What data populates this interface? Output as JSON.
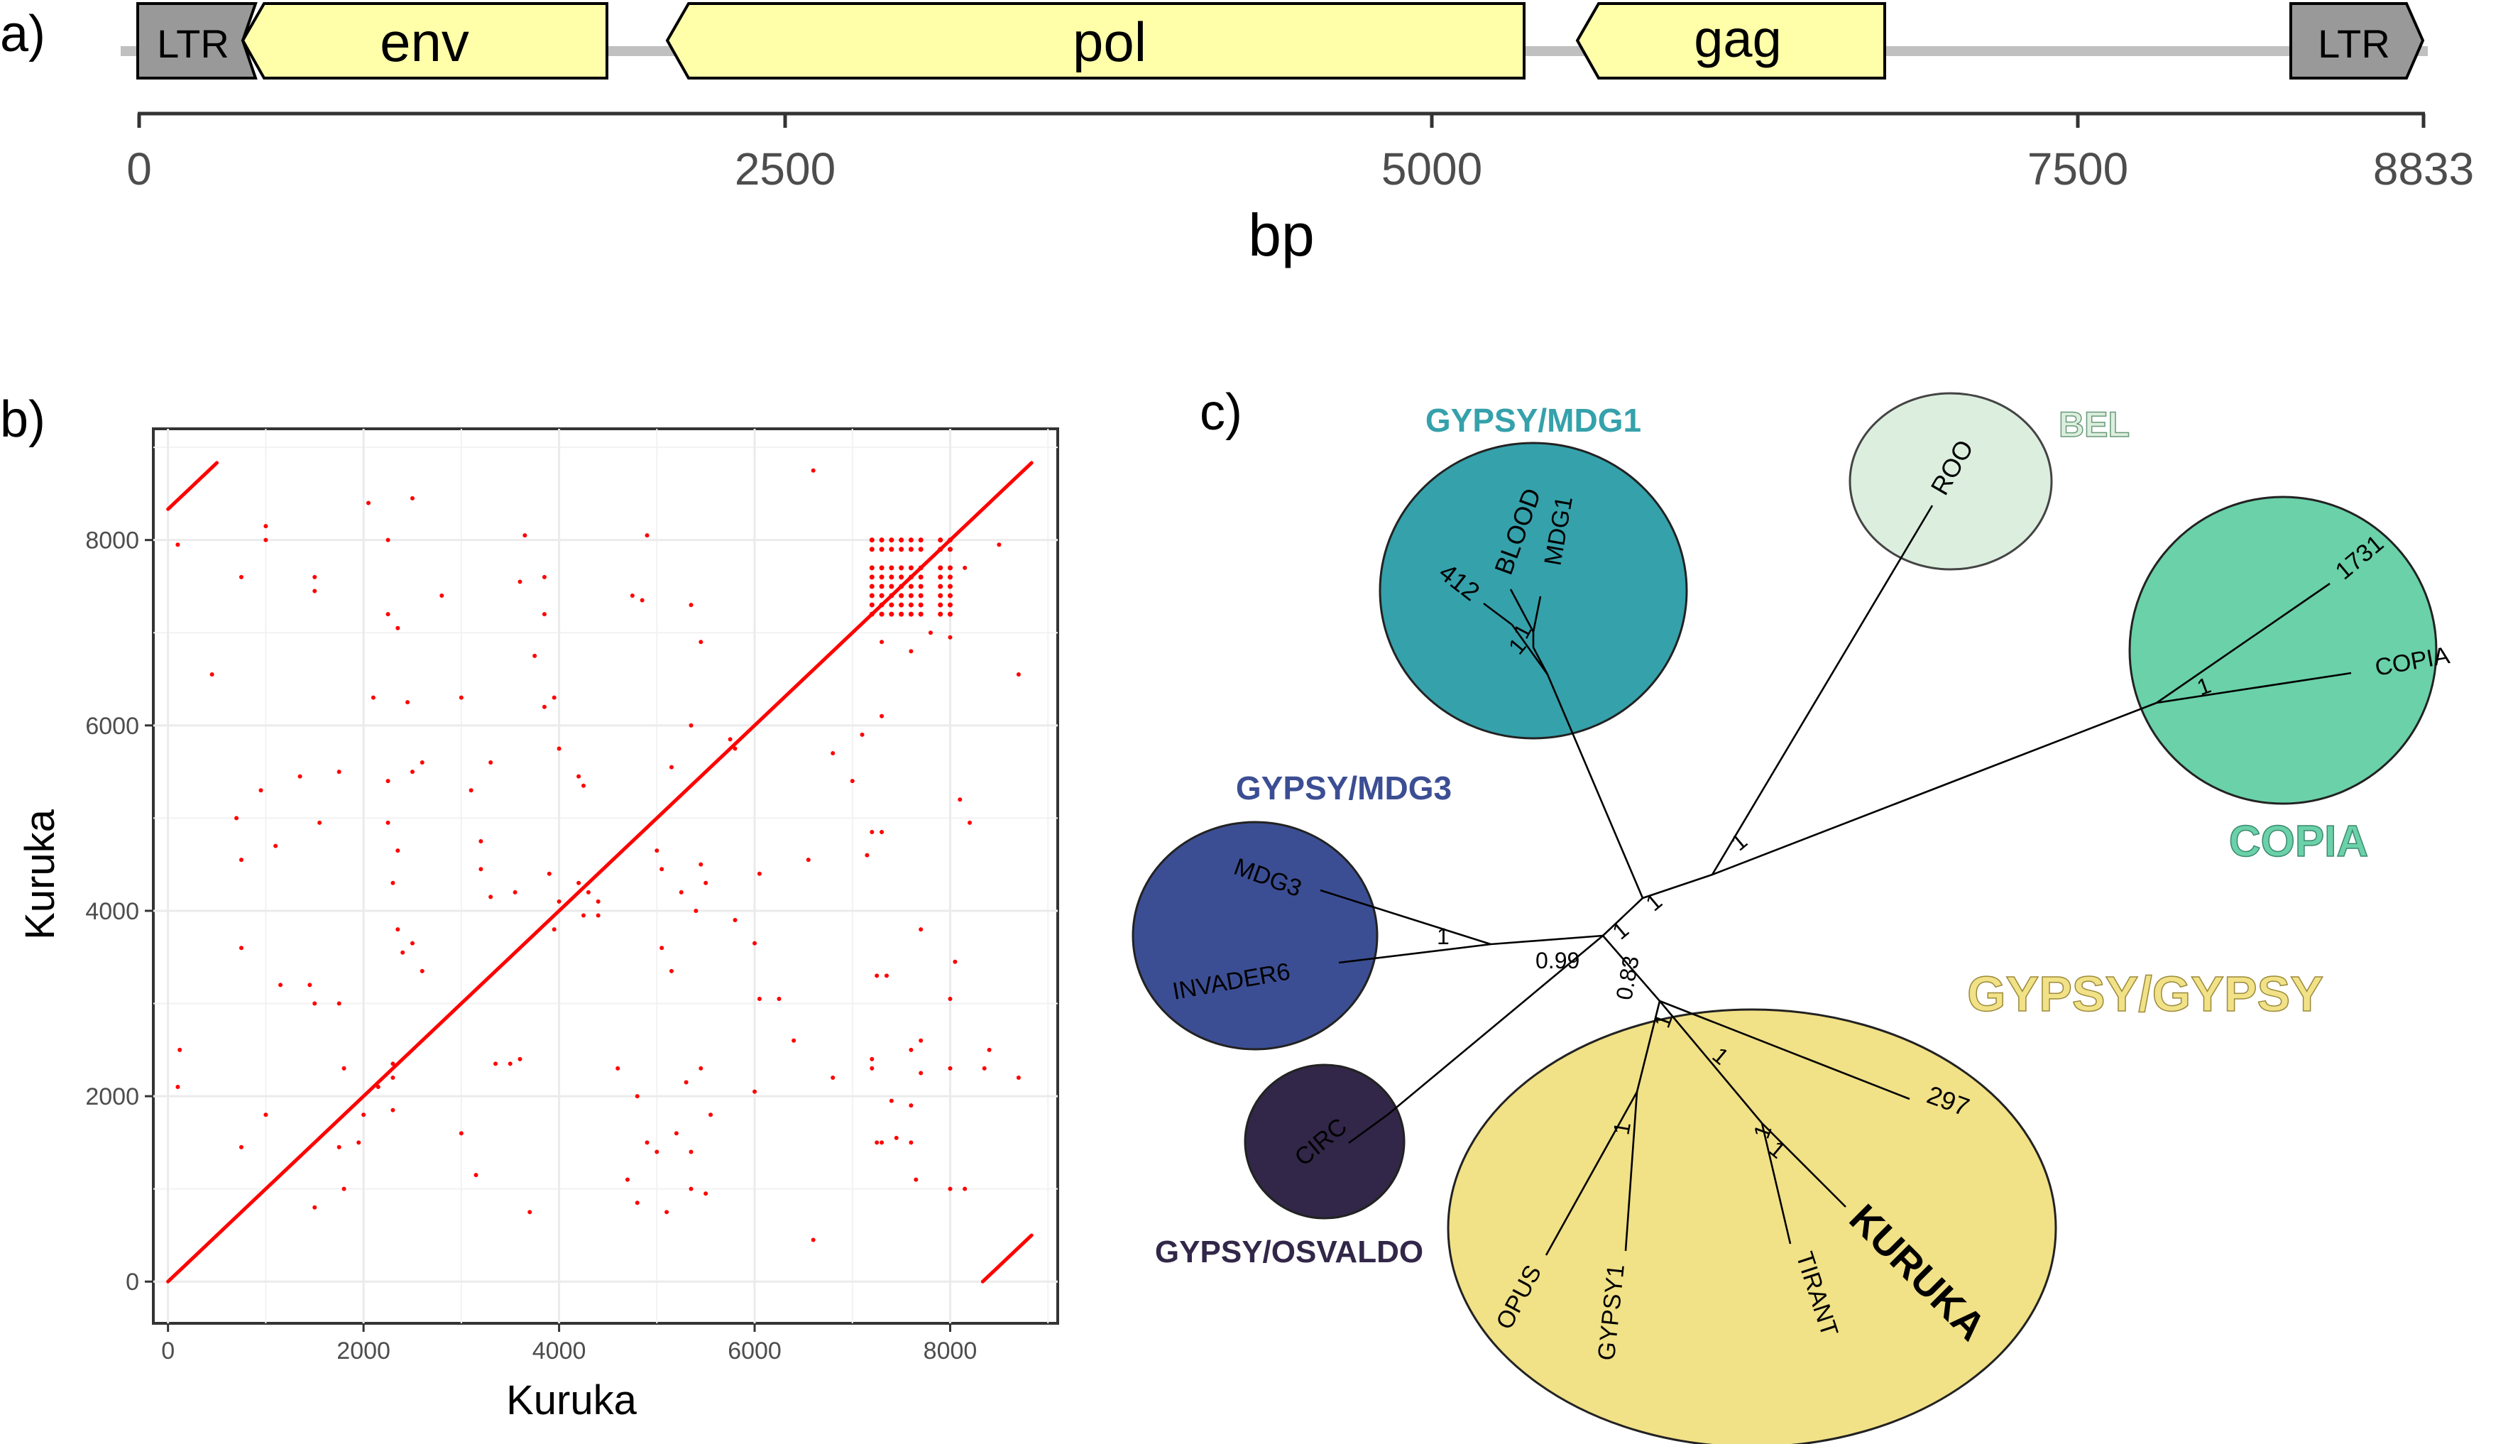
{
  "panel_labels": {
    "a": "a)",
    "b": "b)",
    "c": "c)"
  },
  "colors": {
    "ltr_fill": "#999999",
    "gene_fill": "#ffffaa",
    "backbone": "#c0c0c0",
    "dot": "#ff0000",
    "mdg1": "#35a1ab",
    "bel": "#dcefdf",
    "copia": "#6ad1a9",
    "mdg3": "#3c4e93",
    "osvaldo": "#322749",
    "gypsy": "#f1e187"
  },
  "panel_a": {
    "features": [
      {
        "label": "LTR",
        "kind": "ltr",
        "dir": "left"
      },
      {
        "label": "env",
        "kind": "gene",
        "dir": "left"
      },
      {
        "label": "pol",
        "kind": "gene",
        "dir": "left"
      },
      {
        "label": "gag",
        "kind": "gene",
        "dir": "left"
      },
      {
        "label": "LTR",
        "kind": "ltr",
        "dir": "right"
      }
    ],
    "ticks": [
      "0",
      "2500",
      "5000",
      "7500",
      "8833"
    ],
    "axis_label": "bp"
  },
  "chart_data": {
    "type": "scatter",
    "xlabel": "Kuruka",
    "ylabel": "Kuruka",
    "xlim": [
      -150,
      9100
    ],
    "ylim": [
      -450,
      9200
    ],
    "x_ticks": [
      "0",
      "2000",
      "4000",
      "6000",
      "8000"
    ],
    "y_ticks": [
      "0",
      "2000",
      "4000",
      "6000",
      "8000"
    ],
    "grid": true,
    "series": [
      {
        "segments": [
          {
            "x": [
              0,
              8833
            ],
            "y": [
              0,
              8833
            ]
          },
          {
            "x": [
              0,
              500
            ],
            "y": [
              8333,
              8833
            ]
          },
          {
            "x": [
              8333,
              8833
            ],
            "y": [
              0,
              500
            ]
          }
        ]
      }
    ],
    "points": [
      [
        100,
        7950
      ],
      [
        450,
        6550
      ],
      [
        120,
        2500
      ],
      [
        100,
        2100
      ],
      [
        1000,
        8150
      ],
      [
        1000,
        8000
      ],
      [
        750,
        7600
      ],
      [
        1500,
        7600
      ],
      [
        1500,
        7450
      ],
      [
        950,
        5300
      ],
      [
        700,
        5000
      ],
      [
        750,
        4550
      ],
      [
        1100,
        4700
      ],
      [
        1350,
        5450
      ],
      [
        1550,
        4950
      ],
      [
        1750,
        5500
      ],
      [
        1150,
        3200
      ],
      [
        750,
        3600
      ],
      [
        1450,
        3200
      ],
      [
        1500,
        3000
      ],
      [
        1750,
        3000
      ],
      [
        1000,
        1800
      ],
      [
        750,
        1450
      ],
      [
        1800,
        2300
      ],
      [
        1750,
        1450
      ],
      [
        1500,
        800
      ],
      [
        1800,
        1000
      ],
      [
        1950,
        1500
      ],
      [
        2050,
        8400
      ],
      [
        2250,
        8000
      ],
      [
        2500,
        8450
      ],
      [
        2250,
        7200
      ],
      [
        2350,
        7050
      ],
      [
        2800,
        7400
      ],
      [
        2100,
        6300
      ],
      [
        2450,
        6250
      ],
      [
        2600,
        5600
      ],
      [
        2500,
        5500
      ],
      [
        2250,
        5400
      ],
      [
        2250,
        4950
      ],
      [
        2350,
        4650
      ],
      [
        2300,
        4300
      ],
      [
        2350,
        3800
      ],
      [
        2400,
        3550
      ],
      [
        2500,
        3650
      ],
      [
        2600,
        3350
      ],
      [
        2300,
        2350
      ],
      [
        2150,
        2100
      ],
      [
        2300,
        2200
      ],
      [
        2300,
        1850
      ],
      [
        2000,
        1800
      ],
      [
        3000,
        1600
      ],
      [
        3150,
        1150
      ],
      [
        3350,
        2350
      ],
      [
        3500,
        2350
      ],
      [
        3600,
        2400
      ],
      [
        3700,
        750
      ],
      [
        3000,
        6300
      ],
      [
        3300,
        5600
      ],
      [
        3650,
        8050
      ],
      [
        3600,
        7550
      ],
      [
        3850,
        7600
      ],
      [
        3850,
        7200
      ],
      [
        3750,
        6750
      ],
      [
        3950,
        6300
      ],
      [
        3850,
        6200
      ],
      [
        4000,
        5750
      ],
      [
        4200,
        5450
      ],
      [
        4250,
        5350
      ],
      [
        3100,
        5300
      ],
      [
        3200,
        4750
      ],
      [
        3200,
        4450
      ],
      [
        3300,
        4150
      ],
      [
        3550,
        4200
      ],
      [
        3900,
        4400
      ],
      [
        4000,
        4100
      ],
      [
        4200,
        4300
      ],
      [
        4300,
        4200
      ],
      [
        4400,
        4100
      ],
      [
        4400,
        3950
      ],
      [
        4250,
        3950
      ],
      [
        3950,
        3800
      ],
      [
        4600,
        2300
      ],
      [
        4800,
        2000
      ],
      [
        4700,
        1100
      ],
      [
        4800,
        850
      ],
      [
        4900,
        1500
      ],
      [
        5000,
        1400
      ],
      [
        4750,
        7400
      ],
      [
        4850,
        7350
      ],
      [
        4900,
        8050
      ],
      [
        5350,
        7300
      ],
      [
        5450,
        6900
      ],
      [
        5350,
        6000
      ],
      [
        5150,
        5550
      ],
      [
        5000,
        4650
      ],
      [
        5050,
        4450
      ],
      [
        5250,
        4200
      ],
      [
        5400,
        4000
      ],
      [
        5050,
        3600
      ],
      [
        5150,
        3350
      ],
      [
        5450,
        2300
      ],
      [
        5300,
        2150
      ],
      [
        5200,
        1600
      ],
      [
        5350,
        1400
      ],
      [
        5550,
        1800
      ],
      [
        5350,
        1000
      ],
      [
        5100,
        750
      ],
      [
        5500,
        950
      ],
      [
        5750,
        5850
      ],
      [
        5800,
        5750
      ],
      [
        5450,
        4500
      ],
      [
        5500,
        4300
      ],
      [
        5800,
        3900
      ],
      [
        6050,
        4400
      ],
      [
        6000,
        3650
      ],
      [
        6050,
        3050
      ],
      [
        6000,
        2050
      ],
      [
        6400,
        2600
      ],
      [
        6600,
        8750
      ],
      [
        6550,
        4550
      ],
      [
        6250,
        3050
      ],
      [
        6600,
        450
      ],
      [
        6800,
        5700
      ],
      [
        6800,
        2200
      ],
      [
        7100,
        5900
      ],
      [
        7300,
        6100
      ],
      [
        7200,
        4850
      ],
      [
        7300,
        4850
      ],
      [
        7200,
        2400
      ],
      [
        7200,
        2300
      ],
      [
        7250,
        1500
      ],
      [
        7300,
        1500
      ],
      [
        7250,
        3300
      ],
      [
        7350,
        3300
      ],
      [
        7400,
        1950
      ],
      [
        7450,
        1550
      ],
      [
        7600,
        2500
      ],
      [
        7600,
        1900
      ],
      [
        7600,
        1500
      ],
      [
        7700,
        3800
      ],
      [
        7700,
        2600
      ],
      [
        7700,
        2250
      ],
      [
        7650,
        1100
      ],
      [
        8050,
        3450
      ],
      [
        8000,
        3050
      ],
      [
        8000,
        1000
      ],
      [
        8000,
        2300
      ],
      [
        8150,
        1000
      ],
      [
        8350,
        2300
      ],
      [
        8400,
        2500
      ],
      [
        8700,
        2200
      ],
      [
        8000,
        6950
      ],
      [
        7800,
        7000
      ],
      [
        8100,
        5200
      ],
      [
        8200,
        4950
      ],
      [
        8500,
        7950
      ],
      [
        8700,
        6550
      ],
      [
        7300,
        6900
      ],
      [
        7600,
        6800
      ],
      [
        8150,
        7700
      ],
      [
        7000,
        5400
      ],
      [
        7150,
        4600
      ]
    ],
    "cluster_x": [
      7200,
      7300,
      7400,
      7500,
      7600,
      7700,
      7900,
      8000
    ],
    "cluster_y": [
      7200,
      7300,
      7400,
      7500,
      7600,
      7700,
      7900,
      8000
    ]
  },
  "panel_c": {
    "groups": [
      {
        "name": "GYPSY/MDG1",
        "color": "#35a1ab",
        "text": "#35a1ab"
      },
      {
        "name": "BEL",
        "color": "#dcefdf",
        "text": "#dcefdf"
      },
      {
        "name": "COPIA",
        "color": "#6ad1a9",
        "text": "#6ad1a9"
      },
      {
        "name": "GYPSY/MDG3",
        "color": "#3c4e93",
        "text": "#3c4e93"
      },
      {
        "name": "GYPSY/OSVALDO",
        "color": "#322749",
        "text": "#322749"
      },
      {
        "name": "GYPSY/GYPSY",
        "color": "#f1e187",
        "text": "#f1e187"
      }
    ],
    "leaves": [
      "412",
      "BLOOD",
      "MDG1",
      "ROO",
      "1731",
      "COPIA",
      "MDG3",
      "INVADER6",
      "CIRC",
      "297",
      "OPUS",
      "GYPSY1",
      "TIRANT",
      "KURUKA"
    ],
    "supports": [
      "1",
      "1",
      "1",
      "1",
      "1",
      "1",
      "1",
      "1",
      "0.99",
      "0.83",
      "1",
      "1",
      "1",
      "1",
      "1"
    ]
  }
}
